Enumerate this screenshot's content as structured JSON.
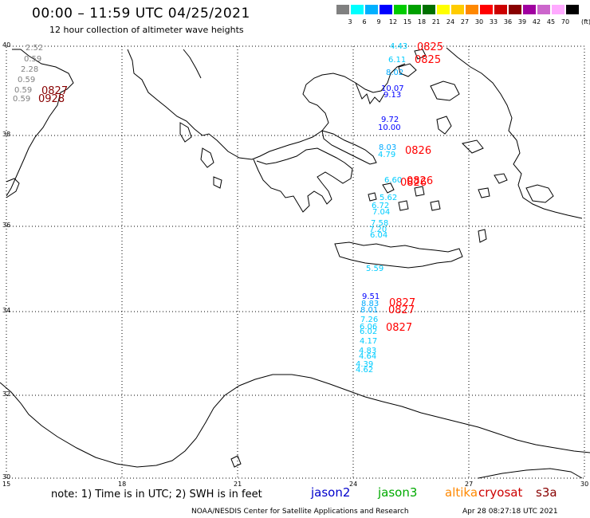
{
  "header": {
    "title": "00:00 – 11:59 UTC 04/25/2021",
    "subtitle": "12 hour collection of altimeter wave heights"
  },
  "legend": {
    "unit": "(ft)",
    "bins": [
      {
        "label": "",
        "color": "#808080"
      },
      {
        "label": "3",
        "color": "#00ffff"
      },
      {
        "label": "6",
        "color": "#00b0ff"
      },
      {
        "label": "9",
        "color": "#0000ff"
      },
      {
        "label": "12",
        "color": "#00cc00"
      },
      {
        "label": "15",
        "color": "#00a000"
      },
      {
        "label": "18",
        "color": "#007000"
      },
      {
        "label": "21",
        "color": "#ffff00"
      },
      {
        "label": "24",
        "color": "#ffcc00"
      },
      {
        "label": "27",
        "color": "#ff8800"
      },
      {
        "label": "30",
        "color": "#ff0000"
      },
      {
        "label": "33",
        "color": "#cc0000"
      },
      {
        "label": "36",
        "color": "#880000"
      },
      {
        "label": "39",
        "color": "#a000a0"
      },
      {
        "label": "42",
        "color": "#cc66cc"
      },
      {
        "label": "45",
        "color": "#ffaaff"
      },
      {
        "label": "70",
        "color": "#000000"
      }
    ]
  },
  "axes": {
    "lon_ticks": [
      "15",
      "18",
      "21",
      "24",
      "27",
      "30"
    ],
    "lat_ticks": [
      "40",
      "38",
      "36",
      "34",
      "32",
      "30"
    ]
  },
  "observations": {
    "italy_values": [
      "2.52",
      "0.59",
      "2.28",
      "0.59",
      "0.59",
      "0.59"
    ],
    "italy_colors": [
      "#808080",
      "#808080",
      "#808080",
      "#808080",
      "#808080",
      "#808080"
    ],
    "aegean_values": [
      "4.43",
      "6.11",
      "8.02",
      "10.07",
      "9.13",
      "9.72",
      "10.00",
      "8.03",
      "4.79",
      "6.60",
      "5.62",
      "6.72",
      "7.04",
      "7.58",
      "7.20",
      "6.04",
      "5.59",
      "9.51",
      "8.83",
      "8.01",
      "7.26",
      "6.06",
      "6.02",
      "4.17",
      "4.83",
      "4.64",
      "4.39",
      "4.62"
    ],
    "aegean_colors": [
      "#00ccff",
      "#00ccff",
      "#00aaff",
      "#0000ff",
      "#0000ff",
      "#0000ff",
      "#0000ff",
      "#00aaff",
      "#00ccff",
      "#00ccff",
      "#00ccff",
      "#00ccff",
      "#00ccff",
      "#00ccff",
      "#00ccff",
      "#00ccff",
      "#00ccff",
      "#0000ff",
      "#00aaff",
      "#00aaff",
      "#00ccff",
      "#00ccff",
      "#00ccff",
      "#00ccff",
      "#00ccff",
      "#00ccff",
      "#00ccff",
      "#00ccff"
    ],
    "time_labels": [
      {
        "text": "0827",
        "color": "#880000"
      },
      {
        "text": "0928",
        "color": "#880000"
      },
      {
        "text": "0825",
        "color": "#ff0000"
      },
      {
        "text": "0825",
        "color": "#ff0000"
      },
      {
        "text": "0826",
        "color": "#ff0000"
      },
      {
        "text": "0826",
        "color": "#ff0000"
      },
      {
        "text": "0826",
        "color": "#ff0000"
      },
      {
        "text": "0827",
        "color": "#ff0000"
      },
      {
        "text": "0827",
        "color": "#ff0000"
      },
      {
        "text": "0827",
        "color": "#ff0000"
      }
    ]
  },
  "footer": {
    "note": "note:  1) Time is in UTC;  2) SWH is in feet",
    "satellites": [
      {
        "name": "jason2",
        "color": "#0000cc"
      },
      {
        "name": "jason3",
        "color": "#00aa00"
      },
      {
        "name": "altika",
        "color": "#ff8800"
      },
      {
        "name": "cryosat",
        "color": "#cc0000"
      },
      {
        "name": "s3a",
        "color": "#880000"
      }
    ],
    "credit": "NOAA/NESDIS Center for Satellite Applications and Research",
    "timestamp": "Apr 28 08:27:18 UTC 2021"
  }
}
